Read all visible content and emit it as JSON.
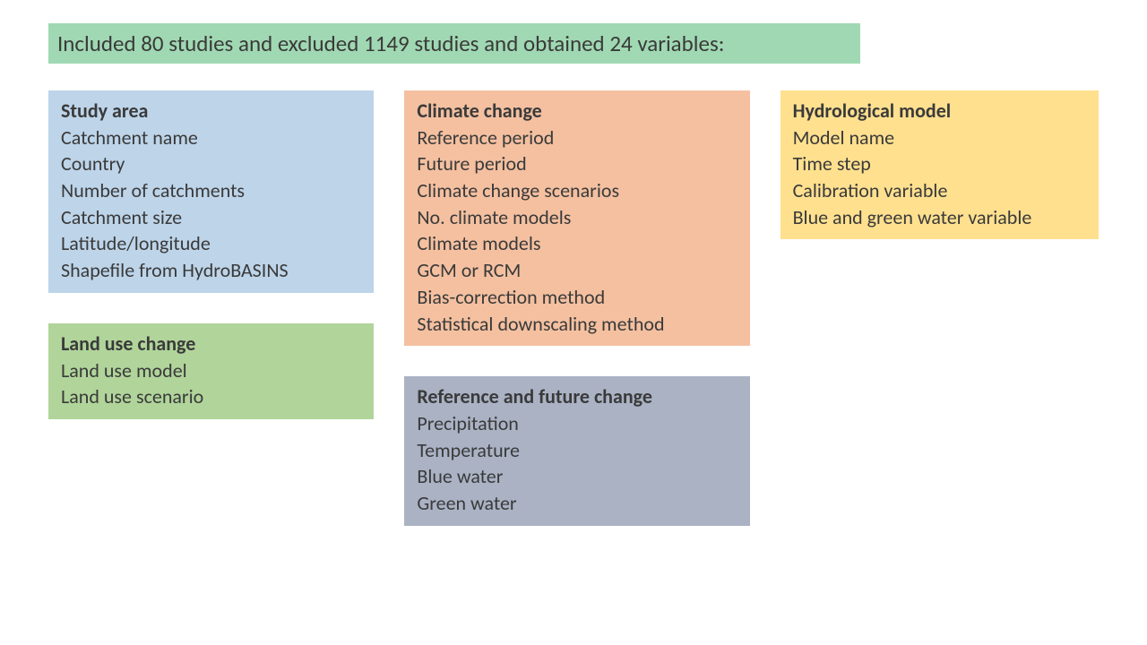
{
  "colors": {
    "title_bg": "#9fd8b2",
    "study_area_bg": "#bdd4e9",
    "climate_change_bg": "#f4c0a0",
    "hydro_model_bg": "#ffe08f",
    "land_use_bg": "#b0d49a",
    "ref_future_bg": "#aab2c4",
    "text": "#3a3a3a"
  },
  "title": "Included 80 studies and excluded 1149 studies and obtained 24 variables:",
  "boxes": {
    "study_area": {
      "heading": "Study area",
      "items": [
        "Catchment name",
        "Country",
        "Number of catchments",
        "Catchment size",
        "Latitude/longitude",
        "Shapefile from HydroBASINS"
      ]
    },
    "climate_change": {
      "heading": "Climate change",
      "items": [
        "Reference period",
        "Future period",
        "Climate change scenarios",
        "No. climate models",
        "Climate models",
        "GCM or RCM",
        "Bias-correction method",
        "Statistical downscaling method"
      ]
    },
    "hydro_model": {
      "heading": "Hydrological model",
      "items": [
        "Model name",
        "Time step",
        "Calibration variable",
        "Blue and green water variable"
      ]
    },
    "land_use": {
      "heading": "Land use change",
      "items": [
        "Land use model",
        "Land use scenario"
      ]
    },
    "ref_future": {
      "heading": "Reference and future change",
      "items": [
        "Precipitation",
        "Temperature",
        "Blue water",
        "Green water"
      ]
    }
  }
}
